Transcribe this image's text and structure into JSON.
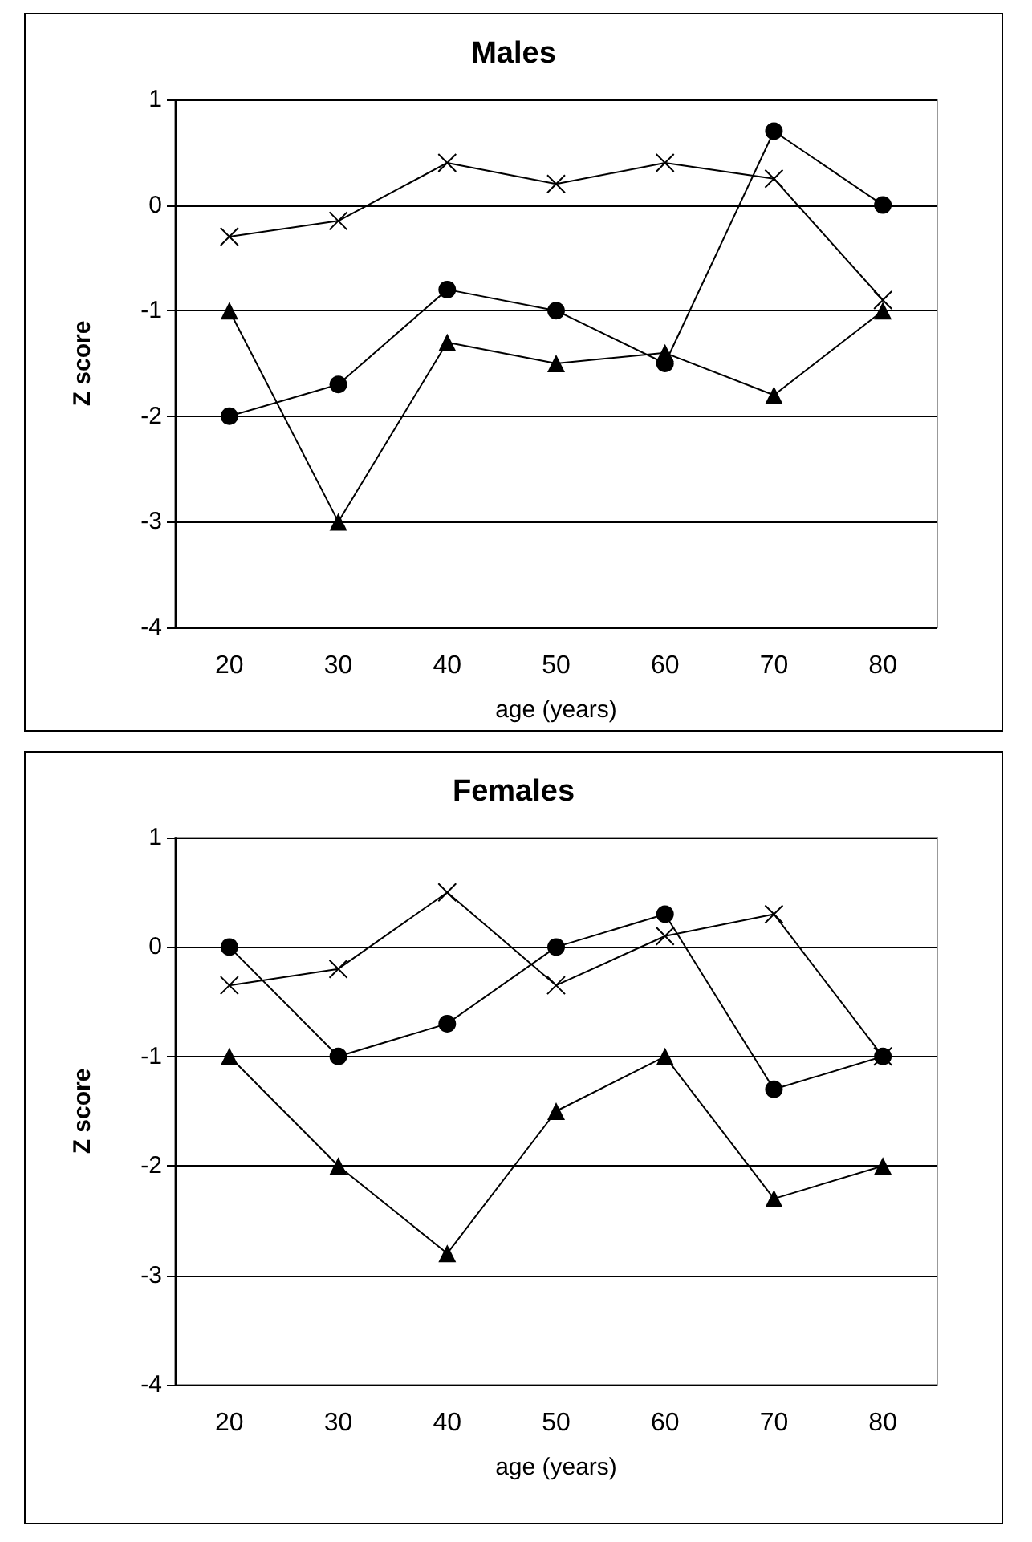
{
  "chart_data": [
    {
      "type": "line",
      "title": "Males",
      "xlabel": "age (years)",
      "ylabel": "Z score",
      "categories": [
        "20",
        "30",
        "40",
        "50",
        "60",
        "70",
        "80"
      ],
      "ylim": [
        -4,
        1
      ],
      "yticks": [
        -4,
        -3,
        -2,
        -1,
        0,
        1
      ],
      "grid": "y",
      "series": [
        {
          "color": "#000000",
          "marker": "circle",
          "values": [
            -2,
            -1.7,
            -0.8,
            -1,
            -1.5,
            0.7,
            0
          ]
        },
        {
          "color": "#000000",
          "marker": "triangle",
          "values": [
            -1,
            -3,
            -1.3,
            -1.5,
            -1.4,
            -1.8,
            -1
          ]
        },
        {
          "color": "#000000",
          "marker": "cross",
          "values": [
            -0.3,
            -0.15,
            0.4,
            0.2,
            0.4,
            0.25,
            -0.9
          ]
        }
      ]
    },
    {
      "type": "line",
      "title": "Females",
      "xlabel": "age (years)",
      "ylabel": "Z score",
      "categories": [
        "20",
        "30",
        "40",
        "50",
        "60",
        "70",
        "80"
      ],
      "ylim": [
        -4,
        1
      ],
      "yticks": [
        -4,
        -3,
        -2,
        -1,
        0,
        1
      ],
      "grid": "y",
      "series": [
        {
          "color": "#000000",
          "marker": "circle",
          "values": [
            0,
            -1,
            -0.7,
            0,
            0.3,
            -1.3,
            -1
          ]
        },
        {
          "color": "#000000",
          "marker": "triangle",
          "values": [
            -1,
            -2,
            -2.8,
            -1.5,
            -1,
            -2.3,
            -2
          ]
        },
        {
          "color": "#000000",
          "marker": "cross",
          "values": [
            -0.35,
            -0.2,
            0.5,
            -0.35,
            0.1,
            0.3,
            -1
          ]
        }
      ]
    }
  ]
}
